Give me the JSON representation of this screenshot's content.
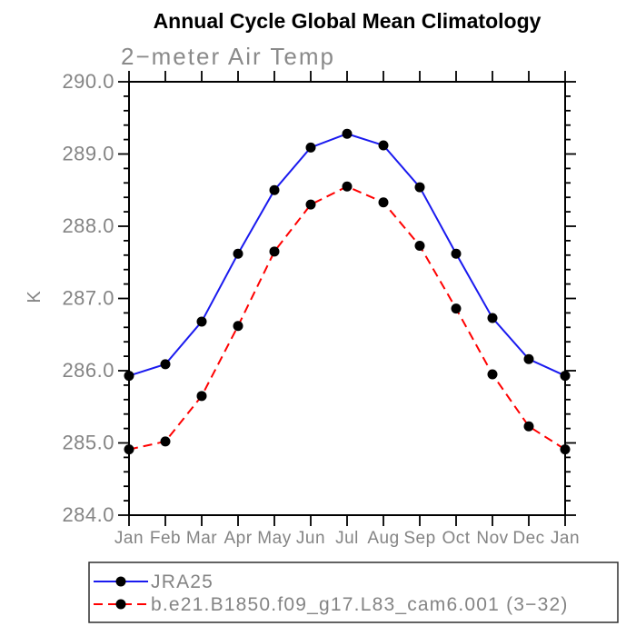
{
  "chart_data": {
    "type": "line",
    "title": "Annual Cycle Global Mean Climatology",
    "subtitle": "2−meter Air Temp",
    "ylabel": "K",
    "xlabel": "",
    "categories": [
      "Jan",
      "Feb",
      "Mar",
      "Apr",
      "May",
      "Jun",
      "Jul",
      "Aug",
      "Sep",
      "Oct",
      "Nov",
      "Dec",
      "Jan"
    ],
    "ylim": [
      284.0,
      290.0
    ],
    "ytick_interval": 1.0,
    "minor_ticks_per_interval": 4,
    "ytick_labels": [
      "290.0",
      "289.0",
      "288.0",
      "287.0",
      "286.0",
      "285.0",
      "284.0"
    ],
    "grid": false,
    "legend_position": "bottom",
    "frame_color": "#000000",
    "axis_text_color": "#848484",
    "marker_color": "#000000",
    "series": [
      {
        "name": "JRA25",
        "color": "#1a1aef",
        "line_style": "solid",
        "marker": "filled-circle",
        "values": [
          285.93,
          286.09,
          286.68,
          287.62,
          288.5,
          289.09,
          289.28,
          289.12,
          288.54,
          287.62,
          286.73,
          286.16,
          285.93
        ]
      },
      {
        "name": "b.e21.B1850.f09_g17.L83_cam6.001 (3−32)",
        "color": "#ff0000",
        "line_style": "dashed",
        "marker": "filled-circle",
        "values": [
          284.91,
          285.02,
          285.65,
          286.62,
          287.65,
          288.3,
          288.55,
          288.33,
          287.73,
          286.86,
          285.95,
          285.23,
          284.91
        ]
      }
    ]
  }
}
